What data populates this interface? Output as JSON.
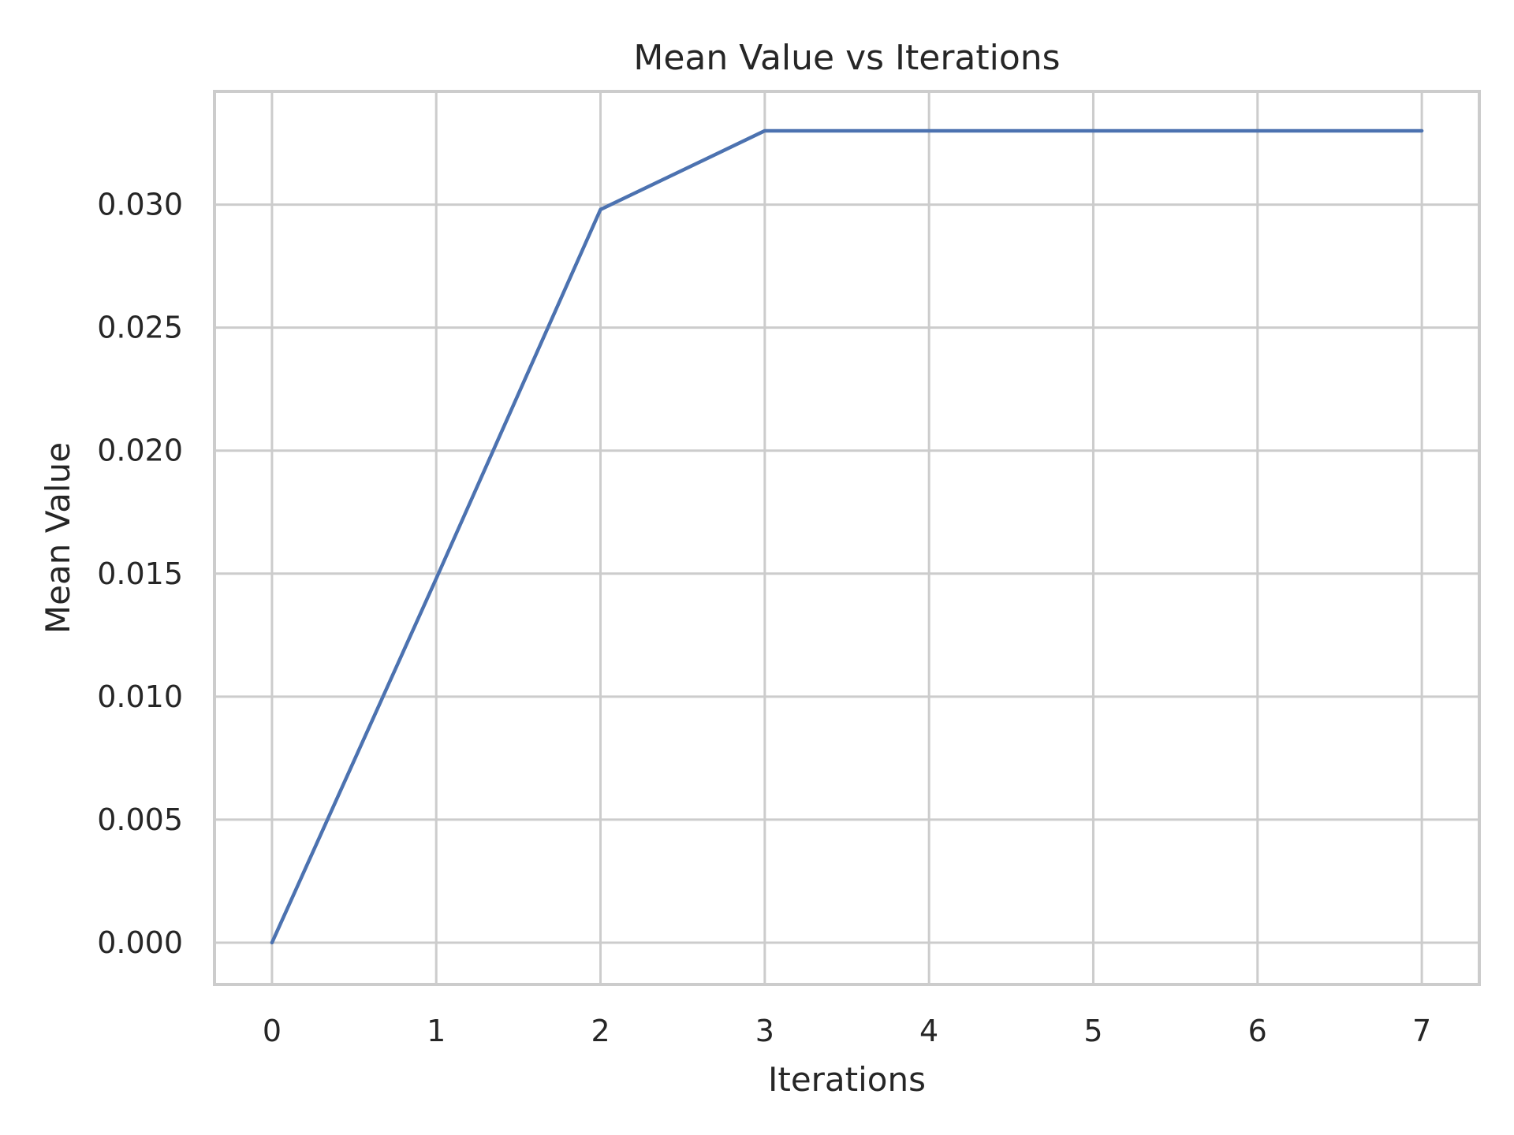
{
  "chart_data": {
    "type": "line",
    "title": "Mean Value vs Iterations",
    "xlabel": "Iterations",
    "ylabel": "Mean Value",
    "xlim": [
      -0.35,
      7.35
    ],
    "ylim": [
      -0.0017,
      0.0346
    ],
    "xticks": [
      0,
      1,
      2,
      3,
      4,
      5,
      6,
      7
    ],
    "xtick_labels": [
      "0",
      "1",
      "2",
      "3",
      "4",
      "5",
      "6",
      "7"
    ],
    "yticks": [
      0.0,
      0.005,
      0.01,
      0.015,
      0.02,
      0.025,
      0.03
    ],
    "ytick_labels": [
      "0.000",
      "0.005",
      "0.010",
      "0.015",
      "0.020",
      "0.025",
      "0.030"
    ],
    "grid": true,
    "series": [
      {
        "name": "Mean Value",
        "color": "#4c72b0",
        "x": [
          0,
          1,
          2,
          3,
          4,
          5,
          6,
          7
        ],
        "y": [
          0.0,
          0.0148,
          0.0298,
          0.033,
          0.033,
          0.033,
          0.033,
          0.033
        ]
      }
    ]
  }
}
